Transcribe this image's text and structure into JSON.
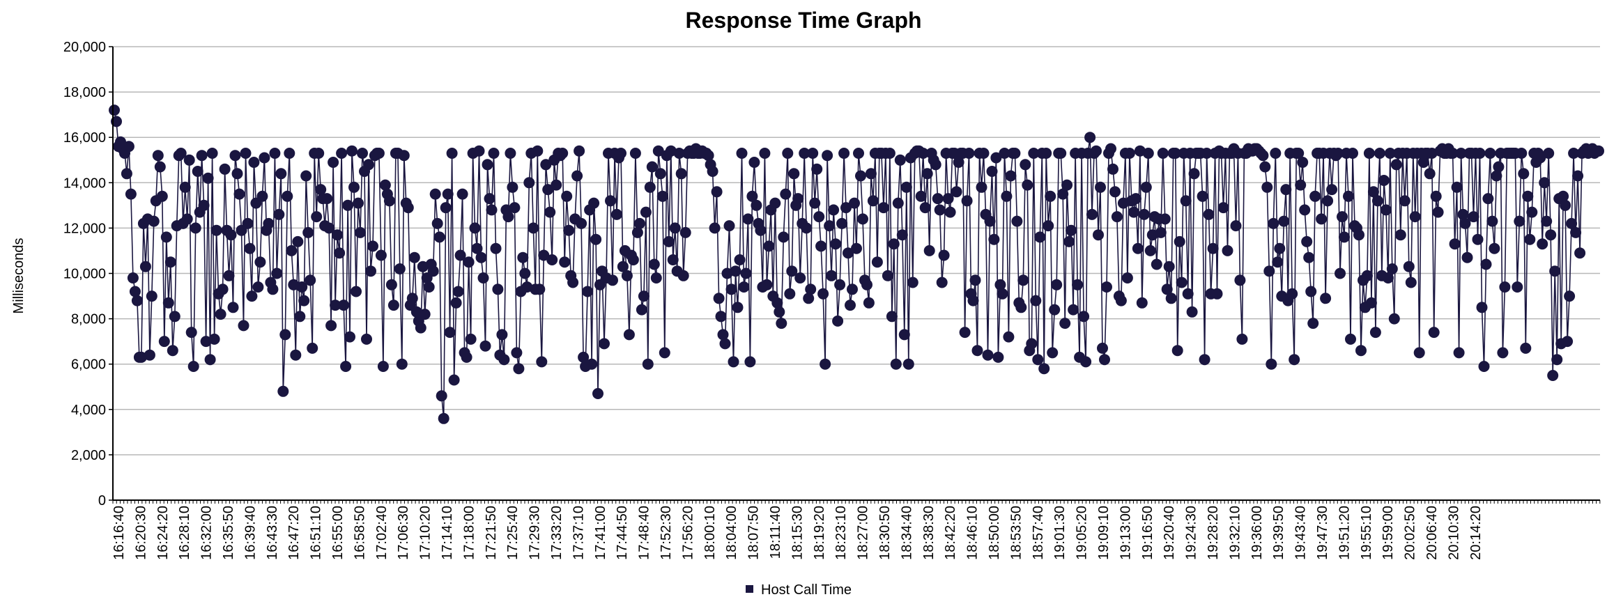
{
  "chart_data": {
    "type": "line",
    "title": "Response Time Graph",
    "xlabel": "",
    "ylabel": "Milliseconds",
    "ylim": [
      0,
      20000
    ],
    "yticks": [
      "0",
      "2,000",
      "4,000",
      "6,000",
      "8,000",
      "10,000",
      "12,000",
      "14,000",
      "16,000",
      "18,000",
      "20,000"
    ],
    "x_start": "16:16:40",
    "x_end": "20:16:10",
    "xtick_labels": [
      "16:16:40",
      "16:20:30",
      "16:24:20",
      "16:28:10",
      "16:32:00",
      "16:35:50",
      "16:39:40",
      "16:43:30",
      "16:47:20",
      "16:51:10",
      "16:55:00",
      "16:58:50",
      "17:02:40",
      "17:06:30",
      "17:10:20",
      "17:14:10",
      "17:18:00",
      "17:21:50",
      "17:25:40",
      "17:29:30",
      "17:33:20",
      "17:37:10",
      "17:41:00",
      "17:44:50",
      "17:48:40",
      "17:52:30",
      "17:56:20",
      "18:00:10",
      "18:04:00",
      "18:07:50",
      "18:11:40",
      "18:15:30",
      "18:19:20",
      "18:23:10",
      "18:27:00",
      "18:30:50",
      "18:34:40",
      "18:38:30",
      "18:42:20",
      "18:46:10",
      "18:50:00",
      "18:53:50",
      "18:57:40",
      "19:01:30",
      "19:05:20",
      "19:09:10",
      "19:13:00",
      "19:16:50",
      "19:20:40",
      "19:24:30",
      "19:28:20",
      "19:32:10",
      "19:36:00",
      "19:39:50",
      "19:43:40",
      "19:47:30",
      "19:51:20",
      "19:55:10",
      "19:59:00",
      "20:02:50",
      "20:06:40",
      "20:10:30",
      "20:14:20"
    ],
    "grid": true,
    "legend_position": "bottom-center",
    "colors": {
      "series": "#1a1640",
      "grid": "#b8b8b8",
      "axis": "#000000"
    },
    "series": [
      {
        "name": "Host Call Time",
        "values": [
          17200,
          16700,
          15600,
          15800,
          15500,
          15300,
          14400,
          15600,
          13500,
          9800,
          9200,
          8800,
          6300,
          6300,
          12200,
          10300,
          12400,
          6400,
          9000,
          12300,
          13200,
          15200,
          14700,
          13400,
          7000,
          11600,
          8700,
          10500,
          6600,
          8100,
          12100,
          15200,
          15300,
          12200,
          13800,
          12400,
          15000,
          7400,
          5900,
          12000,
          14500,
          12700,
          15200,
          13000,
          7000,
          14200,
          6200,
          15300,
          7100,
          11900,
          9100,
          8200,
          9300,
          14600,
          11900,
          9900,
          11700,
          8500,
          15200,
          14400,
          13500,
          11900,
          7700,
          15300,
          12200,
          11100,
          9000,
          14900,
          13100,
          9400,
          10500,
          13400,
          15100,
          11900,
          12200,
          9600,
          9300,
          15300,
          10000,
          12600,
          14400,
          4800,
          7300,
          13400,
          15300,
          11000,
          9500,
          6400,
          11400,
          8100,
          9400,
          8800,
          14300,
          11800,
          9700,
          6700,
          15300,
          12500,
          15300,
          13700,
          13300,
          12100,
          13300,
          12000,
          7700,
          14900,
          8600,
          11700,
          10900,
          15300,
          8600,
          5900,
          13000,
          7200,
          15400,
          13800,
          9200,
          13100,
          11800,
          15300,
          14500,
          7100,
          14800,
          10100,
          11200,
          15200,
          15300,
          15300,
          10800,
          5900,
          13900,
          13500,
          13200,
          9500,
          8600,
          15300,
          15300,
          10200,
          6000,
          15200,
          13100,
          12900,
          8600,
          8900,
          10700,
          8300,
          7900,
          7600,
          10300,
          8200,
          9800,
          9400,
          10400,
          10100,
          13500,
          12200,
          11600,
          4600,
          3600,
          12900,
          13500,
          7400,
          15300,
          5300,
          8700,
          9200,
          10800,
          13500,
          6500,
          6300,
          10500,
          7100,
          15300,
          12000,
          11100,
          15400,
          10700,
          9800,
          6800,
          14800,
          13300,
          12800,
          15300,
          11100,
          9300,
          6400,
          7300,
          6200,
          12800,
          12500,
          15300,
          13800,
          12900,
          6500,
          5800,
          9200,
          10700,
          10000,
          9400,
          14000,
          15300,
          12000,
          9300,
          15400,
          9300,
          6100,
          10800,
          14800,
          13700,
          12700,
          10600,
          15000,
          13900,
          15300,
          15200,
          15300,
          10500,
          13400,
          11900,
          9900,
          9600,
          12400,
          14300,
          15400,
          12200,
          6300,
          5900,
          9200,
          12800,
          6000,
          13100,
          11500,
          4700,
          9500,
          10100,
          6900,
          9800,
          15300,
          13200,
          9700,
          15300,
          12600,
          15100,
          15300,
          10300,
          11000,
          9900,
          7300,
          10800,
          10600,
          15300,
          11800,
          12200,
          8400,
          9000,
          12700,
          6000,
          13800,
          14700,
          10400,
          9800,
          15400,
          14400,
          13400,
          6500,
          15200,
          11400,
          15400,
          10600,
          12000,
          10100,
          15300,
          14400,
          9900,
          11800,
          15300,
          15400,
          15300,
          15300,
          15500,
          15300,
          15300,
          15400,
          15300,
          15300,
          15200,
          14800,
          14500,
          12000,
          13600,
          8900,
          8100,
          7300,
          6900,
          10000,
          12100,
          9300,
          6100,
          10100,
          8500,
          10600,
          15300,
          9400,
          10000,
          12400,
          6100,
          13400,
          14900,
          13000,
          12200,
          11900,
          9400,
          15300,
          9500,
          11200,
          12800,
          9000,
          13100,
          8700,
          8300,
          7800,
          11600,
          13500,
          15300,
          9100,
          10100,
          14400,
          13000,
          13300,
          9800,
          12200,
          15300,
          12000,
          8900,
          9300,
          15300,
          13100,
          14600,
          12500,
          11200,
          9100,
          6000,
          15200,
          12100,
          9900,
          12800,
          11300,
          7900,
          9500,
          12200,
          15300,
          12900,
          10900,
          8600,
          9300,
          13100,
          11100,
          15300,
          14300,
          12400,
          9700,
          9500,
          8700,
          14400,
          13200,
          15300,
          10500,
          15300,
          15300,
          12900,
          15300,
          9900,
          15300,
          8100,
          11300,
          6000,
          13100,
          15000,
          11700,
          7300,
          13800,
          6000,
          15100,
          9600,
          15300,
          15400,
          15400,
          13400,
          15300,
          12900,
          14400,
          11000,
          15300,
          15000,
          14800,
          13300,
          12800,
          9600,
          10800,
          15300,
          13300,
          12700,
          15300,
          15300,
          13600,
          14900,
          15300,
          15300,
          7400,
          13200,
          15300,
          9100,
          8800,
          9700,
          6600,
          15300,
          13800,
          15300,
          12600,
          6400,
          12300,
          14500,
          11500,
          15100,
          6300,
          9500,
          9100,
          15300,
          13400,
          7200,
          14300,
          15300,
          15300,
          12300,
          8700,
          8500,
          9700,
          14800,
          13900,
          6600,
          6900,
          15300,
          8800,
          6200,
          11600,
          15300,
          5800,
          15300,
          12100,
          13400,
          6500,
          8400,
          9500,
          15300,
          15300,
          13500,
          7800,
          13900,
          11400,
          11900,
          8400,
          15300,
          9500,
          6300,
          15300,
          8100,
          6100,
          15300,
          16000,
          12600,
          15300,
          15400,
          11700,
          13800,
          6700,
          6200,
          9400,
          15300,
          15500,
          14600,
          13600,
          12500,
          9000,
          8800,
          13100,
          15300,
          9800,
          15300,
          13200,
          12700,
          13300,
          11100,
          15400,
          8700,
          12600,
          13800,
          15300,
          11000,
          11700,
          12500,
          10400,
          12400,
          11800,
          15300,
          12400,
          9300,
          10300,
          8900,
          15300,
          15300,
          6600,
          11400,
          9600,
          15300,
          13200,
          9100,
          15300,
          8300,
          14400,
          15300,
          15300,
          15300,
          13400,
          6200,
          15300,
          12600,
          9100,
          11100,
          15300,
          9100,
          15400,
          15300,
          12900,
          15300,
          11000,
          15300,
          15300,
          15500,
          12100,
          15300,
          9700,
          7100,
          15300,
          15300,
          15500,
          15400,
          15400,
          15500,
          15500,
          15400,
          15300,
          15200,
          14700,
          13800,
          10100,
          6000,
          12200,
          15300,
          10500,
          11100,
          9000,
          12300,
          13700,
          8800,
          15300,
          9100,
          6200,
          15300,
          15300,
          13900,
          14900,
          12800,
          11400,
          10700,
          9200,
          7800,
          13400,
          15300,
          15300,
          12400,
          15300,
          8900,
          13200,
          15300,
          13700,
          15300,
          15200,
          15300,
          10000,
          12500,
          11600,
          15300,
          13400,
          7100,
          15300,
          12100,
          12000,
          11700,
          6600,
          9700,
          8500,
          9900,
          15300,
          8700,
          13600,
          7400,
          13200,
          15300,
          9900,
          14100,
          12800,
          9800,
          15300,
          10200,
          8000,
          14800,
          15300,
          11700,
          15300,
          13200,
          15300,
          10300,
          9600,
          15300,
          12500,
          15300,
          6500,
          15300,
          14900,
          15300,
          15300,
          14400,
          15300,
          7400,
          13400,
          12700,
          15400,
          15500,
          15300,
          15300,
          15500,
          15300,
          15300,
          11300,
          13800,
          6500,
          15300,
          12600,
          12200,
          10700,
          15300,
          15300,
          12500,
          15300,
          11500,
          15300,
          8500,
          5900,
          10400,
          13300,
          15300,
          12300,
          11100,
          14300,
          14700,
          15300,
          6500,
          9400,
          15300,
          15300,
          15300,
          15300,
          15300,
          9400,
          12300,
          15300,
          14400,
          6700,
          13400,
          11500,
          12700,
          15300,
          14900,
          15300,
          15100,
          11300,
          14000,
          12300,
          15300,
          11700,
          5500,
          10100,
          6200,
          13300,
          6900,
          13400,
          13000,
          7000,
          9000,
          12200,
          15300,
          11800,
          14300,
          10900,
          15300,
          15400,
          15500,
          15300,
          15400,
          15500,
          15300,
          15400,
          15400
        ]
      }
    ]
  }
}
